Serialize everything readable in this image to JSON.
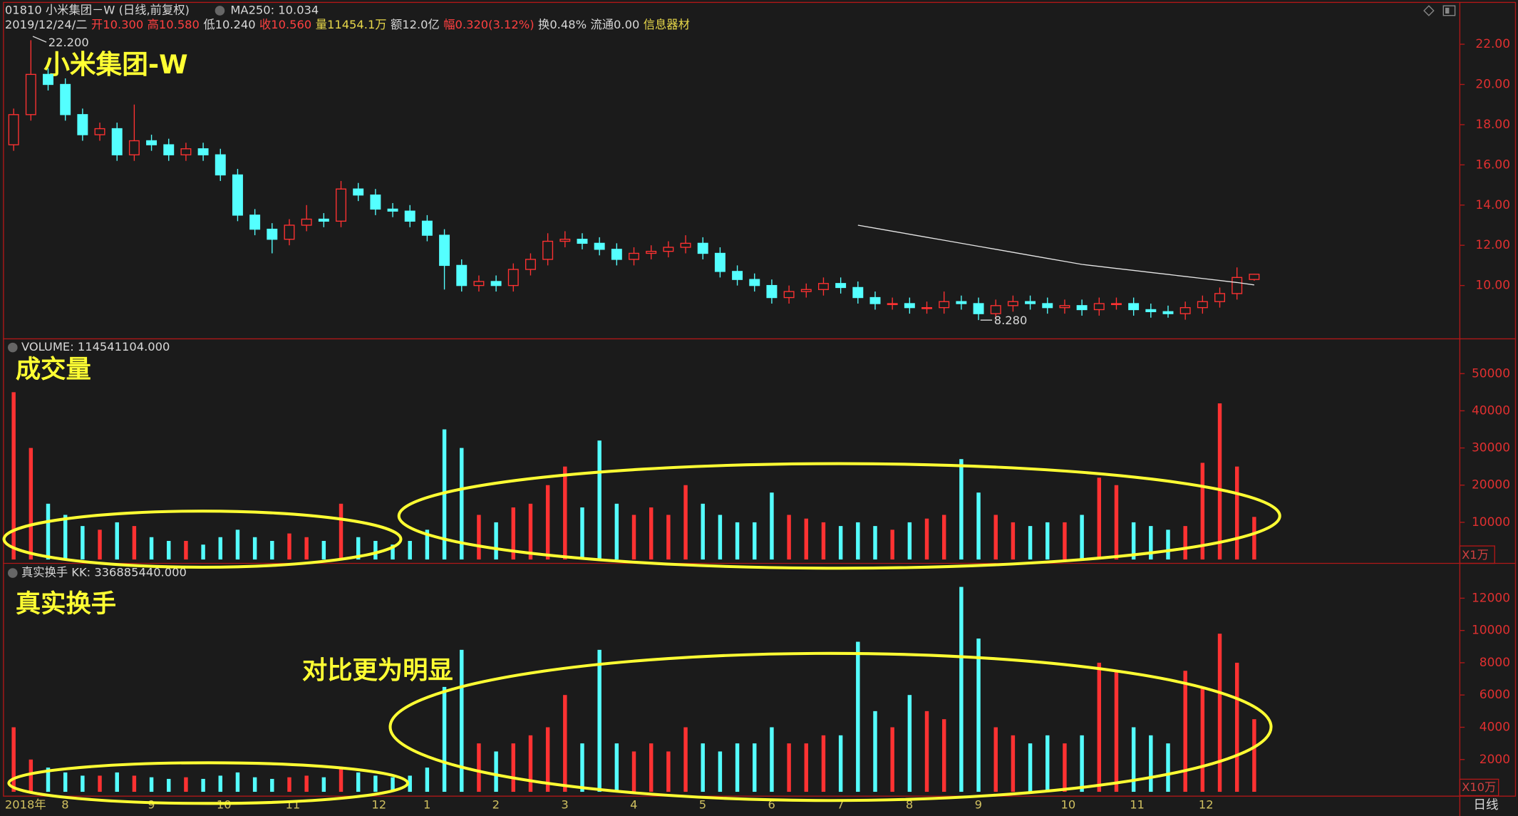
{
  "chart_data": [
    {
      "type": "candlestick",
      "title": "01810 小米集团－W (日线,前复权)",
      "indicator": "MA250: 10.034",
      "info": [
        {
          "text": "2019/12/24/二",
          "color": "#d8d8d8"
        },
        {
          "text": "开10.300",
          "color": "#ff4040"
        },
        {
          "text": "高10.580",
          "color": "#ff4040"
        },
        {
          "text": "低10.240",
          "color": "#d8d8d8"
        },
        {
          "text": "收10.560",
          "color": "#ff4040"
        },
        {
          "text": "量11454.1万",
          "color": "#e8d84a"
        },
        {
          "text": "额12.0亿",
          "color": "#d8d8d8"
        },
        {
          "text": "幅0.320(3.12%)",
          "color": "#ff4040"
        },
        {
          "text": "换0.48%",
          "color": "#d8d8d8"
        },
        {
          "text": "流通0.00",
          "color": "#d8d8d8"
        },
        {
          "text": "信息器材",
          "color": "#e8d84a"
        }
      ],
      "annotation": "小米集团-W",
      "period": "日线",
      "categories": [
        "2018年",
        null,
        null,
        "8",
        null,
        null,
        null,
        null,
        "9",
        null,
        null,
        null,
        "10",
        null,
        null,
        null,
        "11",
        null,
        null,
        null,
        null,
        "12",
        null,
        null,
        "1",
        null,
        null,
        null,
        "2",
        null,
        null,
        null,
        "3",
        null,
        null,
        null,
        "4",
        null,
        null,
        null,
        "5",
        null,
        null,
        null,
        "6",
        null,
        null,
        null,
        "7",
        null,
        null,
        null,
        "8",
        null,
        null,
        null,
        "9",
        null,
        null,
        null,
        null,
        "10",
        null,
        null,
        null,
        "11",
        null,
        null,
        null,
        "12",
        null,
        null,
        null
      ],
      "open": [
        17,
        18.5,
        20.5,
        20,
        18.5,
        17.5,
        17.8,
        16.5,
        17.2,
        17,
        16.5,
        16.8,
        16.5,
        15.5,
        13.5,
        12.8,
        12.3,
        13,
        13.3,
        13.2,
        14.8,
        14.5,
        13.8,
        13.7,
        13.2,
        12.5,
        11,
        10,
        10.2,
        10,
        10.8,
        11.3,
        12.2,
        12.3,
        12.1,
        11.8,
        11.3,
        11.6,
        11.7,
        11.9,
        12.1,
        11.6,
        10.7,
        10.3,
        10,
        9.4,
        9.7,
        9.8,
        10.1,
        9.9,
        9.4,
        9.1,
        9.1,
        8.9,
        8.9,
        9.2,
        9.1,
        8.6,
        9,
        9.2,
        9.1,
        8.9,
        9,
        8.8,
        9.1,
        9.1,
        8.8,
        8.7,
        8.6,
        8.9,
        9.2,
        9.6,
        10.3
      ],
      "high": [
        18.8,
        22.2,
        20.8,
        20.3,
        18.8,
        18.1,
        18.1,
        19,
        17.5,
        17.3,
        17.1,
        17.1,
        16.8,
        15.8,
        13.8,
        13.1,
        13.3,
        14,
        13.6,
        15.2,
        15.1,
        14.8,
        14.1,
        14,
        13.5,
        12.8,
        11.3,
        10.5,
        10.5,
        11.1,
        11.6,
        12.6,
        12.7,
        12.6,
        12.4,
        12.1,
        11.9,
        12,
        12.2,
        12.5,
        12.4,
        11.9,
        11,
        10.6,
        10.3,
        10,
        10.1,
        10.4,
        10.4,
        10.2,
        9.7,
        9.4,
        9.4,
        9.2,
        9.7,
        9.5,
        9.4,
        9.3,
        9.5,
        9.5,
        9.4,
        9.3,
        9.3,
        9.4,
        9.4,
        9.4,
        9.1,
        9,
        9.2,
        9.5,
        9.9,
        10.9,
        10.58
      ],
      "low": [
        16.7,
        18.2,
        19.7,
        18.2,
        17.2,
        17.2,
        16.2,
        16.2,
        16.7,
        16.2,
        16.2,
        16.2,
        15.2,
        13.2,
        12.5,
        11.6,
        12,
        12.7,
        12.9,
        12.9,
        14.2,
        13.5,
        13.4,
        12.9,
        12.2,
        9.8,
        9.7,
        9.7,
        9.7,
        9.7,
        10.5,
        11,
        11.9,
        11.8,
        11.5,
        11,
        11,
        11.3,
        11.4,
        11.6,
        11.3,
        10.4,
        10,
        9.7,
        9.1,
        9.1,
        9.4,
        9.5,
        9.6,
        9.1,
        8.8,
        8.8,
        8.6,
        8.6,
        8.6,
        8.8,
        8.28,
        8.3,
        8.7,
        8.8,
        8.6,
        8.6,
        8.5,
        8.5,
        8.8,
        8.5,
        8.4,
        8.4,
        8.3,
        8.6,
        8.9,
        9.3,
        10.24
      ],
      "close": [
        18.5,
        20.5,
        20,
        18.5,
        17.5,
        17.8,
        16.5,
        17.2,
        17,
        16.5,
        16.8,
        16.5,
        15.5,
        13.5,
        12.8,
        12.3,
        13,
        13.3,
        13.2,
        14.8,
        14.5,
        13.8,
        13.7,
        13.2,
        12.5,
        11,
        10,
        10.2,
        10,
        10.8,
        11.3,
        12.2,
        12.3,
        12.1,
        11.8,
        11.3,
        11.6,
        11.7,
        11.9,
        12.1,
        11.6,
        10.7,
        10.3,
        10,
        9.4,
        9.7,
        9.8,
        10.1,
        9.9,
        9.4,
        9.1,
        9.1,
        8.9,
        8.9,
        9.2,
        9.1,
        8.6,
        9,
        9.2,
        9.1,
        8.9,
        9,
        8.8,
        9.1,
        9.1,
        8.8,
        8.7,
        8.6,
        8.9,
        9.2,
        9.6,
        10.4,
        10.56
      ],
      "ma_values": [
        null,
        null,
        null,
        null,
        null,
        null,
        null,
        null,
        null,
        null,
        null,
        null,
        null,
        null,
        null,
        null,
        null,
        null,
        null,
        null,
        null,
        null,
        null,
        null,
        null,
        null,
        null,
        null,
        null,
        null,
        null,
        null,
        null,
        null,
        null,
        null,
        null,
        null,
        null,
        null,
        null,
        null,
        null,
        null,
        null,
        null,
        null,
        null,
        null,
        13.0,
        12.85,
        12.7,
        12.55,
        12.4,
        12.25,
        12.1,
        11.95,
        11.8,
        11.65,
        11.5,
        11.35,
        11.2,
        11.05,
        10.95,
        10.85,
        10.75,
        10.65,
        10.55,
        10.45,
        10.35,
        10.25,
        10.15,
        10.03
      ],
      "ma_color": "#e6e6e6",
      "max_label": {
        "value": 22.2,
        "label": "22.200"
      },
      "min_label": {
        "value": 8.28,
        "label": "8.280"
      },
      "up_color": "#ff3232",
      "down_color": "#54ffff",
      "ylim": [
        7.35,
        24.2
      ],
      "yticks": [
        {
          "value": 10,
          "label": "10.00"
        },
        {
          "value": 12,
          "label": "12.00"
        },
        {
          "value": 14,
          "label": "14.00"
        },
        {
          "value": 16,
          "label": "16.00"
        },
        {
          "value": 18,
          "label": "18.00"
        },
        {
          "value": 20,
          "label": "20.00"
        },
        {
          "value": 22,
          "label": "22.00"
        }
      ]
    },
    {
      "type": "bar",
      "title": "VOLUME: 114541104.000",
      "annotation": "成交量",
      "unit": "X1万",
      "values": [
        45000,
        30000,
        15000,
        12000,
        9000,
        8000,
        10000,
        9000,
        6000,
        5000,
        5000,
        4000,
        6000,
        8000,
        6000,
        5000,
        7000,
        6000,
        5000,
        15000,
        6000,
        5000,
        4000,
        5000,
        8000,
        35000,
        30000,
        12000,
        10000,
        14000,
        15000,
        20000,
        25000,
        14000,
        32000,
        15000,
        12000,
        14000,
        12000,
        20000,
        15000,
        12000,
        10000,
        10000,
        18000,
        12000,
        11000,
        10000,
        9000,
        10000,
        9000,
        8000,
        10000,
        11000,
        12000,
        27000,
        18000,
        12000,
        10000,
        9000,
        10000,
        10000,
        12000,
        22000,
        20000,
        10000,
        9000,
        8000,
        9000,
        26000,
        42000,
        25000,
        11454.1
      ],
      "ylim": [
        0,
        58850
      ],
      "yticks": [
        10000,
        20000,
        30000,
        40000,
        50000
      ]
    },
    {
      "type": "bar",
      "title": "真实换手 KK: 336885440.000",
      "annotation": "真实换手",
      "note": "对比更为明显",
      "unit": "X10万",
      "values": [
        4000,
        2000,
        1500,
        1200,
        1000,
        1000,
        1200,
        1000,
        900,
        800,
        900,
        800,
        1000,
        1200,
        900,
        800,
        900,
        1000,
        900,
        1500,
        1200,
        1000,
        900,
        1000,
        1500,
        6500,
        8800,
        3000,
        2500,
        3000,
        3500,
        4000,
        6000,
        3000,
        8800,
        3000,
        2500,
        3000,
        2500,
        4000,
        3000,
        2500,
        3000,
        3000,
        4000,
        3000,
        3000,
        3500,
        3500,
        9300,
        5000,
        4000,
        6000,
        5000,
        4500,
        12700,
        9500,
        4000,
        3500,
        3000,
        3500,
        3000,
        3500,
        8000,
        7500,
        4000,
        3500,
        3000,
        7500,
        6500,
        9800,
        8000,
        4500
      ],
      "ylim": [
        0,
        14040
      ],
      "yticks": [
        2000,
        4000,
        6000,
        8000,
        10000,
        12000
      ]
    }
  ]
}
